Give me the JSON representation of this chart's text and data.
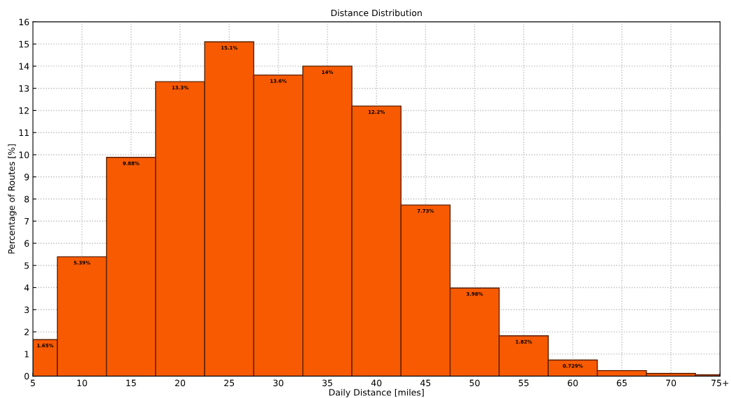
{
  "chart_data": {
    "type": "histogram",
    "title": "Distance Distribution",
    "xlabel": "Daily Distance [miles]",
    "ylabel": "Percentage of Routes [%]",
    "bins": [
      5,
      7.5,
      12.5,
      17.5,
      22.5,
      27.5,
      32.5,
      37.5,
      42.5,
      47.5,
      52.5,
      57.5,
      62.5,
      67.5,
      72.5,
      75
    ],
    "values": [
      1.65,
      5.39,
      9.88,
      13.3,
      15.1,
      13.6,
      14,
      12.2,
      7.73,
      3.98,
      1.82,
      0.729,
      0.25,
      0.12,
      0.06
    ],
    "value_labels": [
      "1.65%",
      "5.39%",
      "9.88%",
      "13.3%",
      "15.1%",
      "13.6%",
      "14%",
      "12.2%",
      "7.73%",
      "3.98%",
      "1.82%",
      "0.729%",
      null,
      null,
      null
    ],
    "color": "#f75a00",
    "xlim": [
      5,
      75
    ],
    "ylim": [
      0,
      16
    ],
    "xticks": [
      5,
      10,
      15,
      20,
      25,
      30,
      35,
      40,
      45,
      50,
      55,
      60,
      65,
      70,
      {
        "value": 75,
        "label": "75+"
      }
    ],
    "yticks": [
      0,
      1,
      2,
      3,
      4,
      5,
      6,
      7,
      8,
      9,
      10,
      11,
      12,
      13,
      14,
      15,
      16
    ],
    "grid": true,
    "legend": false
  }
}
